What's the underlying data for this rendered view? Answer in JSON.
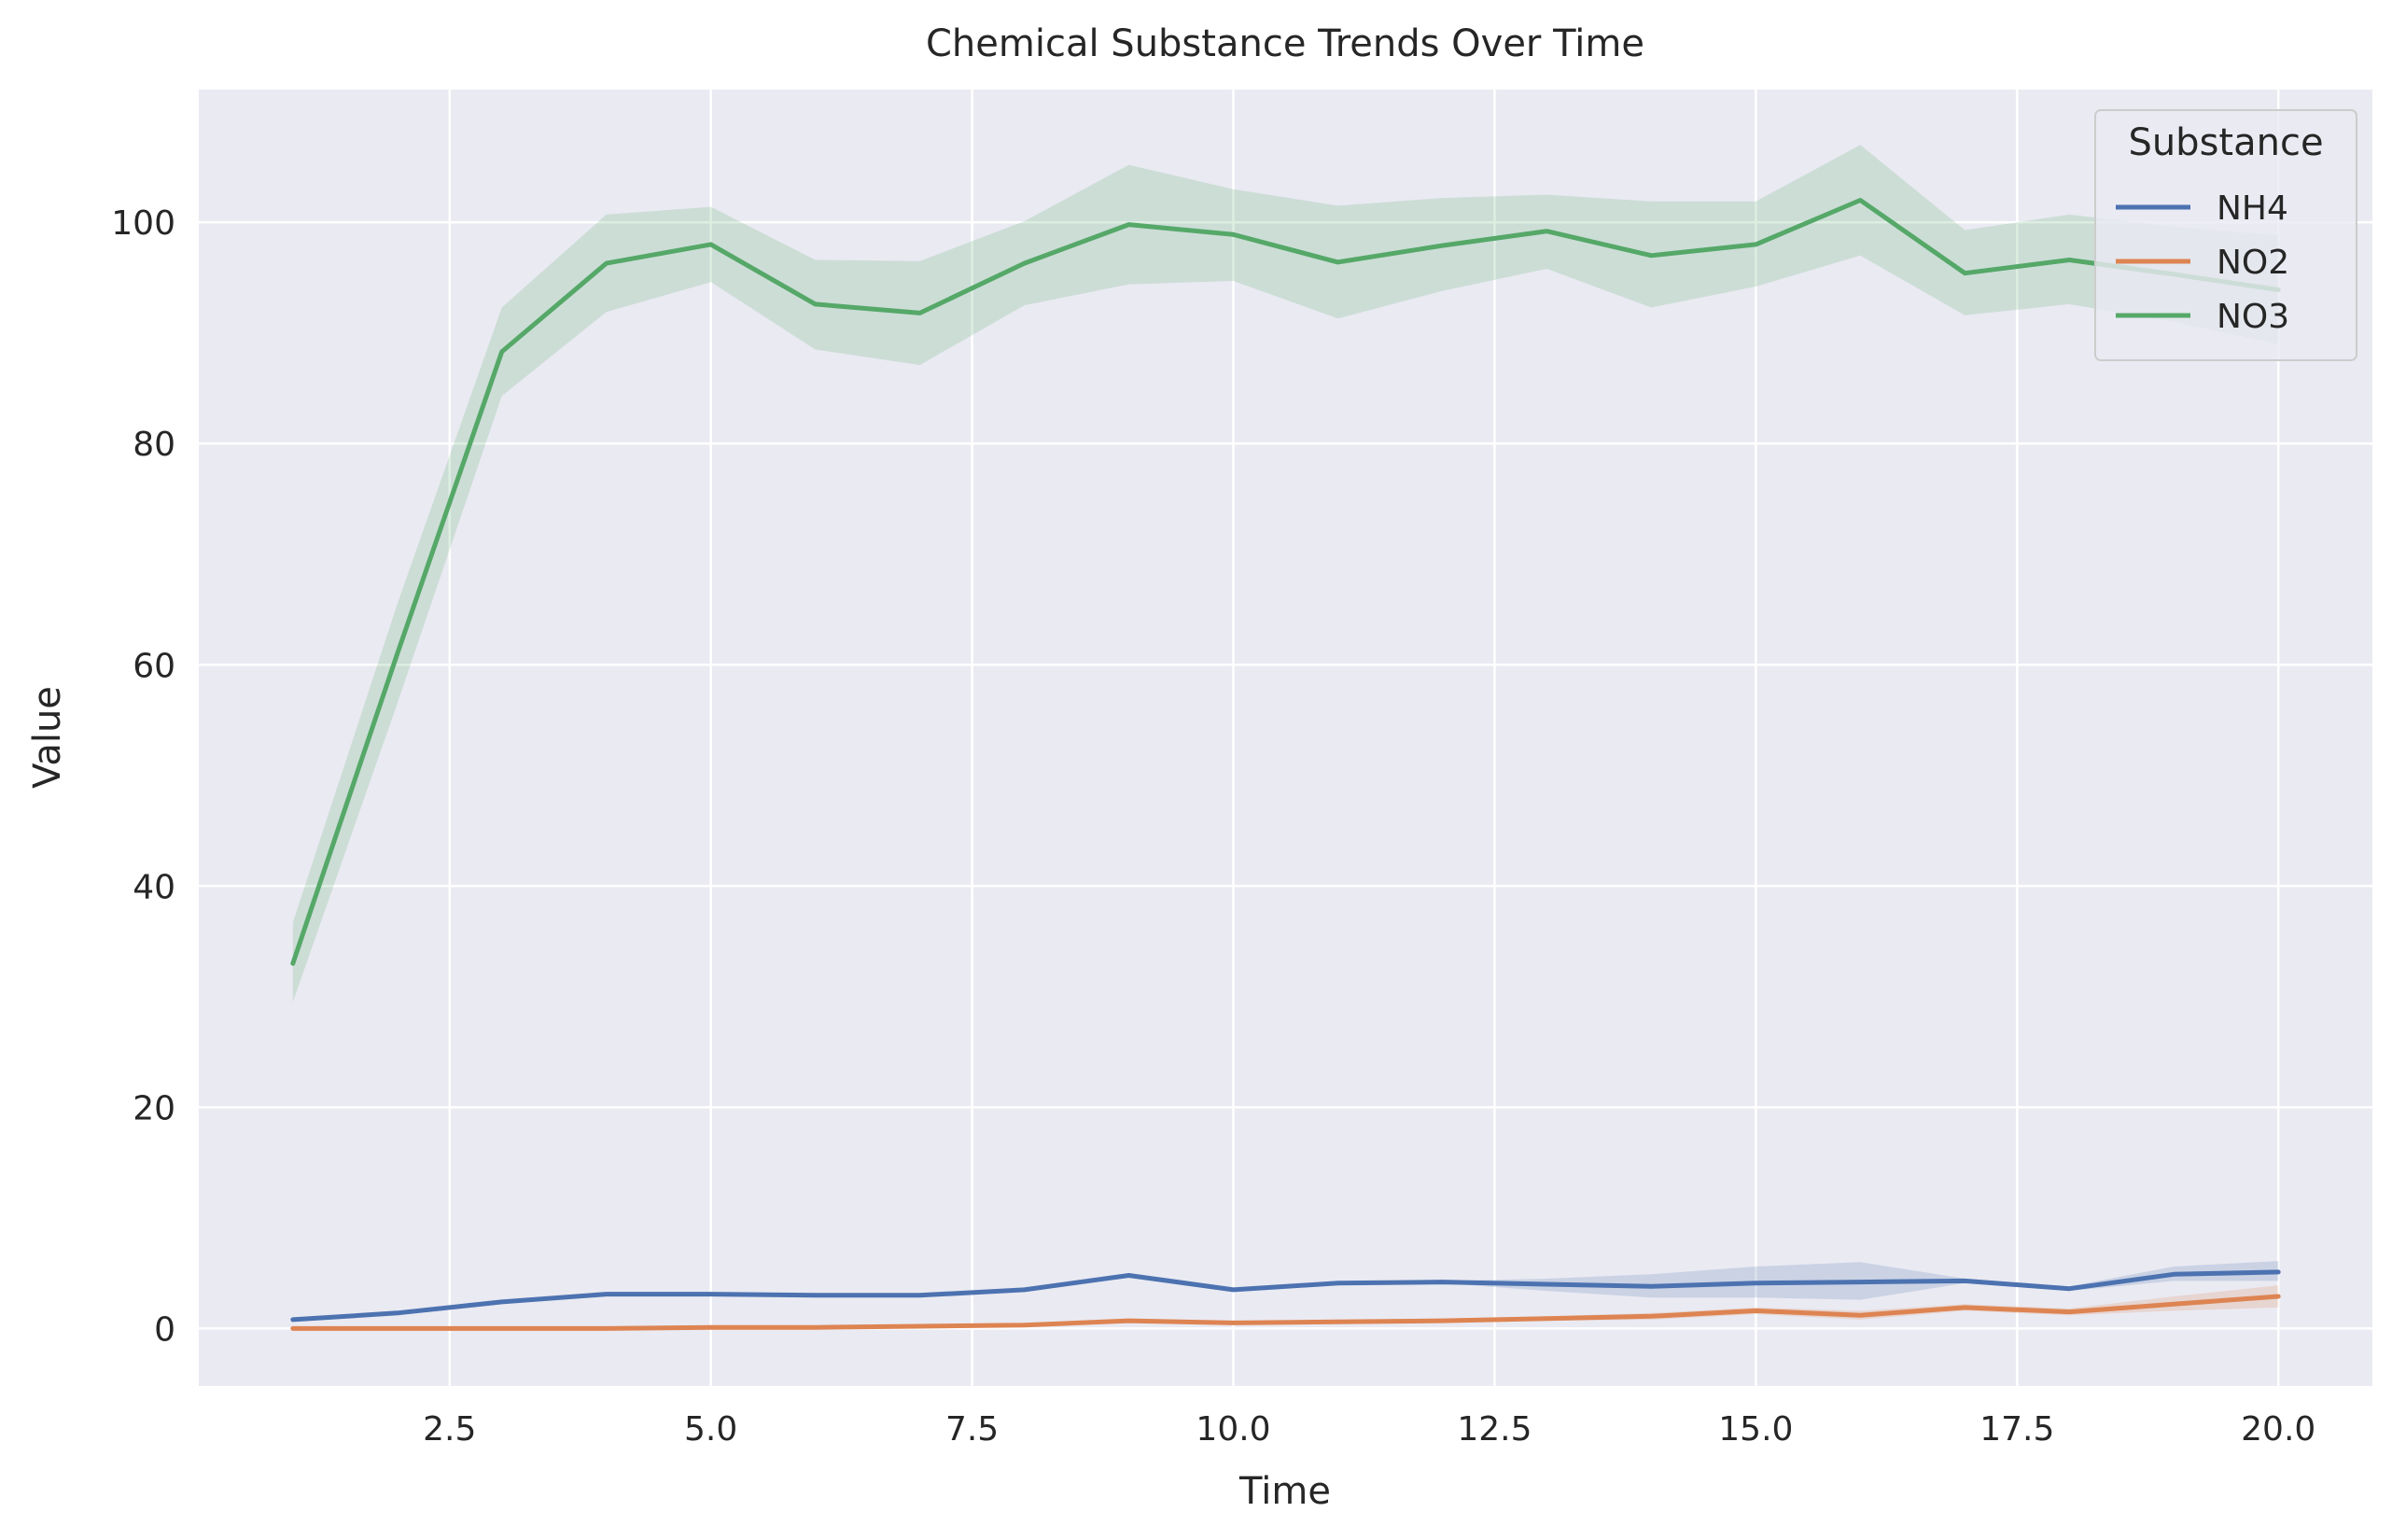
{
  "chart_data": {
    "type": "line",
    "title": "Chemical Substance Trends Over Time",
    "xlabel": "Time",
    "ylabel": "Value",
    "xlim": [
      0.1,
      20.9
    ],
    "ylim": [
      -5.2,
      112
    ],
    "xticks": [
      2.5,
      5.0,
      7.5,
      10.0,
      12.5,
      15.0,
      17.5,
      20.0
    ],
    "xtick_labels": [
      "2.5",
      "5.0",
      "7.5",
      "10.0",
      "12.5",
      "15.0",
      "17.5",
      "20.0"
    ],
    "yticks": [
      0,
      20,
      40,
      60,
      80,
      100
    ],
    "ytick_labels": [
      "0",
      "20",
      "40",
      "60",
      "80",
      "100"
    ],
    "grid": true,
    "legend": {
      "title": "Substance",
      "position": "top-right"
    },
    "x": [
      1,
      2,
      3,
      4,
      5,
      6,
      7,
      8,
      9,
      10,
      11,
      12,
      13,
      14,
      15,
      16,
      17,
      18,
      19,
      20
    ],
    "series": [
      {
        "name": "NH4",
        "color": "#4c72b0",
        "values": [
          0.8,
          1.4,
          2.4,
          3.1,
          3.1,
          3.0,
          3.0,
          3.5,
          4.8,
          3.5,
          4.1,
          4.2,
          4.0,
          3.8,
          4.1,
          4.2,
          4.3,
          3.6,
          4.9,
          5.1
        ],
        "lower": [
          0.7,
          1.3,
          2.3,
          3.0,
          3.0,
          2.9,
          2.9,
          3.4,
          4.7,
          3.4,
          4.0,
          4.1,
          3.4,
          2.8,
          2.8,
          2.6,
          4.1,
          3.4,
          4.3,
          4.3
        ],
        "upper": [
          0.9,
          1.5,
          2.5,
          3.2,
          3.2,
          3.1,
          3.1,
          3.6,
          4.9,
          3.6,
          4.2,
          4.3,
          4.5,
          4.9,
          5.6,
          6.0,
          4.5,
          3.8,
          5.6,
          6.1
        ]
      },
      {
        "name": "NO2",
        "color": "#dd8452",
        "values": [
          0.0,
          0.0,
          0.0,
          0.0,
          0.1,
          0.1,
          0.2,
          0.3,
          0.7,
          0.5,
          0.6,
          0.7,
          0.9,
          1.1,
          1.6,
          1.2,
          1.9,
          1.5,
          2.2,
          2.9
        ],
        "lower": [
          0.0,
          0.0,
          0.0,
          0.0,
          0.0,
          0.0,
          0.1,
          0.2,
          0.6,
          0.4,
          0.5,
          0.6,
          0.7,
          0.8,
          1.3,
          0.8,
          1.6,
          1.2,
          1.6,
          1.9
        ],
        "upper": [
          0.1,
          0.1,
          0.1,
          0.1,
          0.2,
          0.2,
          0.3,
          0.4,
          0.9,
          0.7,
          0.7,
          0.9,
          1.1,
          1.4,
          1.9,
          1.6,
          2.2,
          1.8,
          2.9,
          3.9
        ]
      },
      {
        "name": "NO3",
        "color": "#55a868",
        "values": [
          33.0,
          61.0,
          88.3,
          96.3,
          98.0,
          92.6,
          91.8,
          96.3,
          99.8,
          98.9,
          96.4,
          97.9,
          99.2,
          97.0,
          98.0,
          102.0,
          95.4,
          96.6,
          95.3,
          93.9
        ],
        "lower": [
          29.5,
          56.5,
          84.3,
          91.9,
          94.6,
          88.5,
          87.1,
          92.5,
          94.4,
          94.7,
          91.3,
          93.8,
          95.8,
          92.3,
          94.2,
          97.0,
          91.6,
          92.6,
          91.0,
          89.0
        ],
        "upper": [
          36.7,
          65.5,
          92.3,
          100.7,
          101.4,
          96.6,
          96.5,
          100.1,
          105.2,
          103.0,
          101.5,
          102.2,
          102.5,
          101.9,
          101.9,
          107.0,
          99.3,
          100.7,
          99.6,
          98.8
        ]
      }
    ]
  }
}
